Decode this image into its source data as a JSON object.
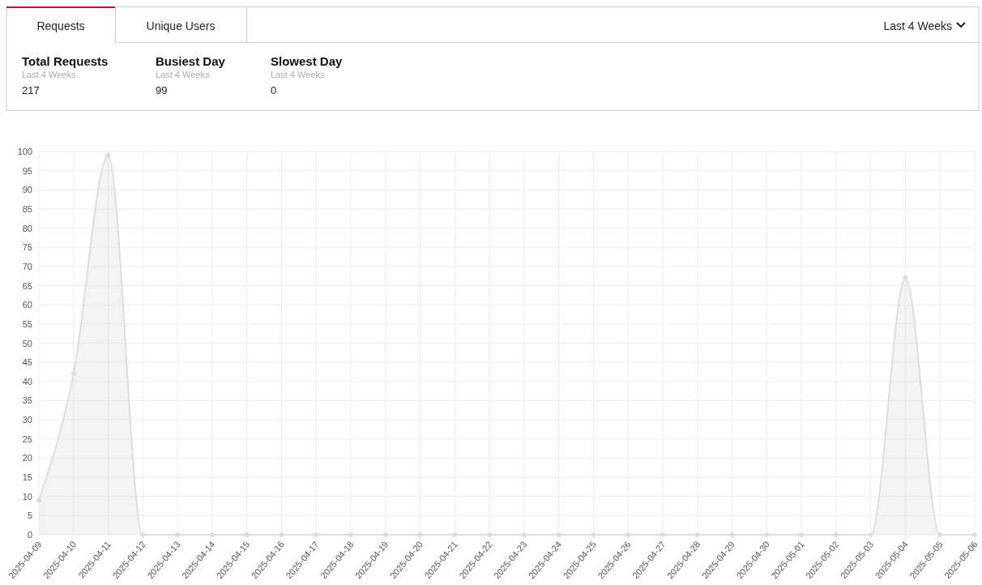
{
  "chart_data": [
    {
      "type": "other",
      "annotations": [
        "Requests",
        "Unique Users",
        "Last 4 Weeks",
        "Total Requests",
        "Last 4 Weeks",
        "217",
        "Busiest Day",
        "Last 4 Weeks",
        "99",
        "Slowest Day",
        "Last 4 Weeks",
        "0"
      ]
    },
    {
      "type": "area",
      "categories": [
        "2025-04-09",
        "2025-04-10",
        "2025-04-11",
        "2025-04-12",
        "2025-04-13",
        "2025-04-14",
        "2025-04-15",
        "2025-04-16",
        "2025-04-17",
        "2025-04-18",
        "2025-04-19",
        "2025-04-20",
        "2025-04-21",
        "2025-04-22",
        "2025-04-23",
        "2025-04-24",
        "2025-04-25",
        "2025-04-26",
        "2025-04-27",
        "2025-04-28",
        "2025-04-29",
        "2025-04-30",
        "2025-05-01",
        "2025-05-02",
        "2025-05-03",
        "2025-05-04",
        "2025-05-05",
        "2025-05-06"
      ],
      "series": [
        {
          "color": "#dddddd",
          "values": [
            9,
            42,
            99,
            0,
            0,
            0,
            0,
            0,
            0,
            0,
            0,
            0,
            0,
            0,
            0,
            0,
            0,
            0,
            0,
            0,
            0,
            0,
            0,
            0,
            0,
            67,
            0,
            0
          ]
        }
      ],
      "ylim": [
        0,
        100
      ],
      "yticks": [
        0,
        5,
        10,
        15,
        20,
        25,
        30,
        35,
        40,
        45,
        50,
        55,
        60,
        65,
        70,
        75,
        80,
        85,
        90,
        95,
        100
      ],
      "grid": true,
      "marker": "circle"
    }
  ]
}
